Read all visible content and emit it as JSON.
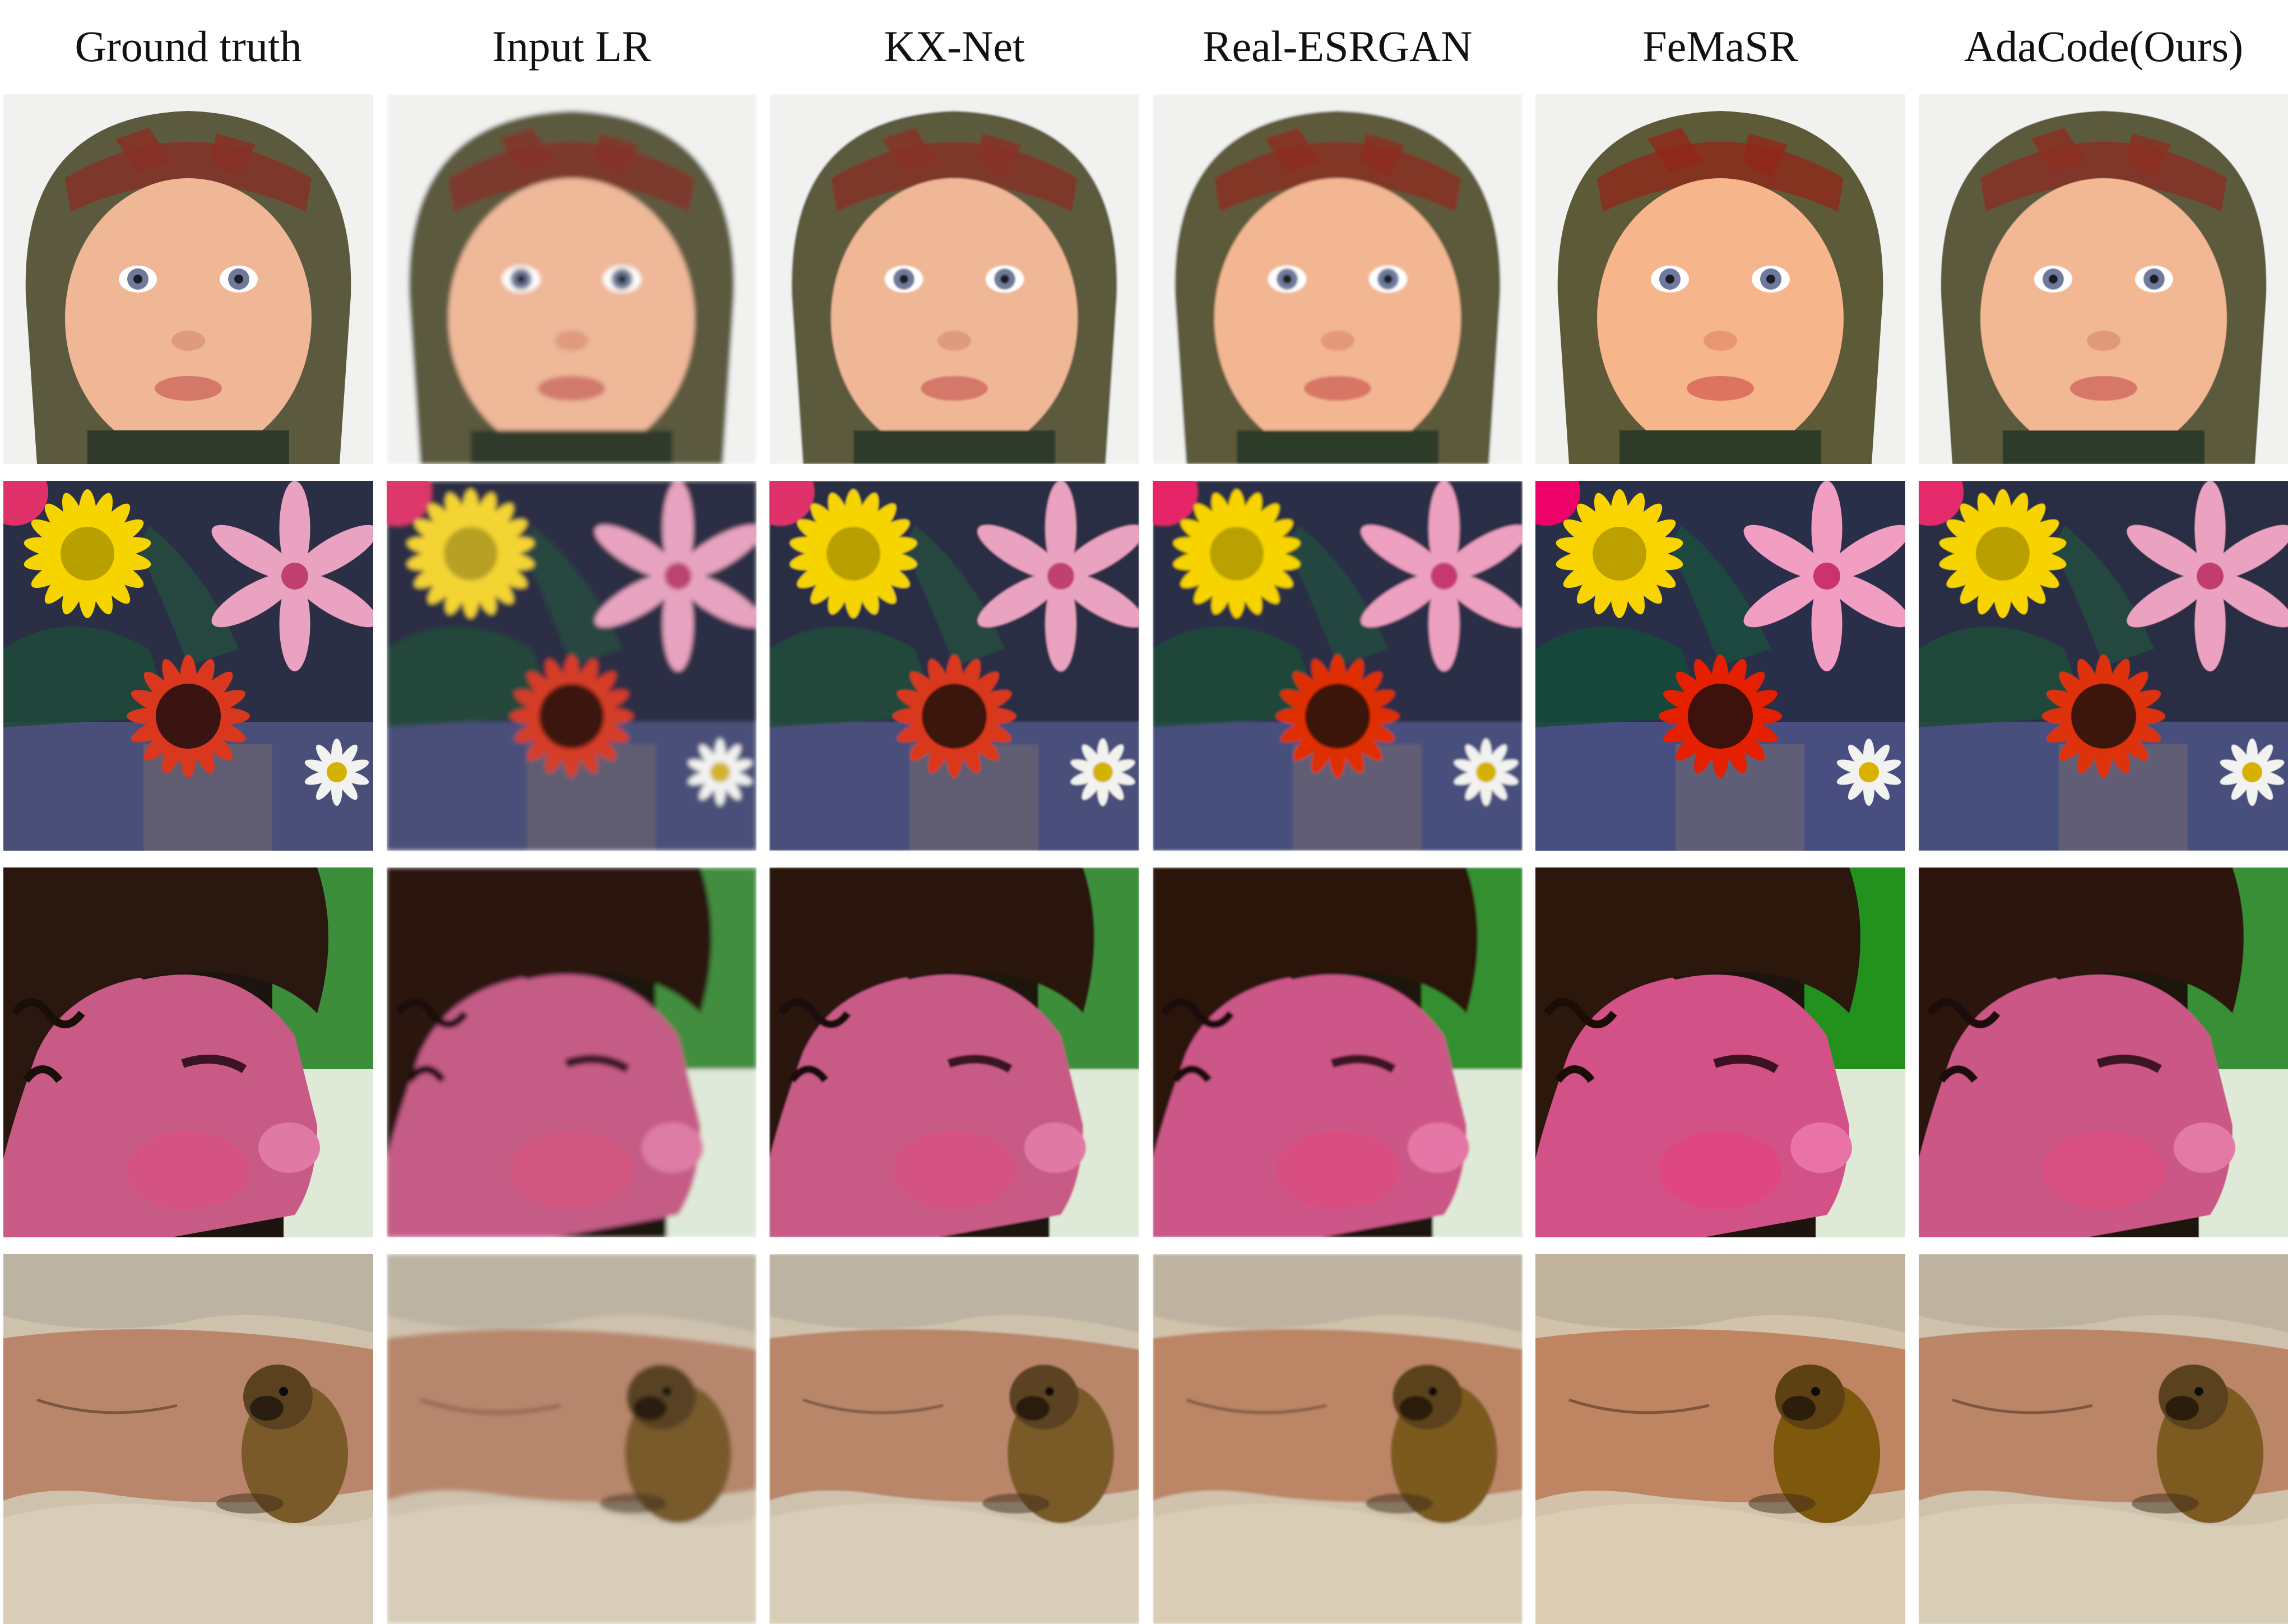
{
  "columns": [
    {
      "id": "gt",
      "label": "Ground truth"
    },
    {
      "id": "lr",
      "label": "Input LR"
    },
    {
      "id": "kx",
      "label": "KX-Net"
    },
    {
      "id": "resrgan",
      "label": "Real-ESRGAN"
    },
    {
      "id": "femasr",
      "label": "FeMaSR"
    },
    {
      "id": "adacode",
      "label": "AdaCode(Ours)"
    }
  ],
  "rows": [
    {
      "id": "baby",
      "subject": "baby-face-image"
    },
    {
      "id": "flowers",
      "subject": "flowers-image"
    },
    {
      "id": "girl",
      "subject": "girl-face-image"
    },
    {
      "id": "marmot",
      "subject": "marmot-image"
    }
  ],
  "colors": {
    "baby_bg": "#f1f1ef",
    "baby_hat": "#5c5a3e",
    "baby_hat_red": "#8a2e26",
    "baby_skin": "#f0b796",
    "flowers_bg": "#2a2f45",
    "flower_yellow": "#f5d400",
    "flower_red": "#d9381e",
    "lily_pink": "#e9a2c0",
    "girl_bg": "#1d1410",
    "girl_green": "#3c8e3a",
    "girl_skin": "#c85a86",
    "rock_light": "#cfc2ad",
    "rock_red": "#b9866b",
    "marmot_fur": "#7a5a28"
  }
}
